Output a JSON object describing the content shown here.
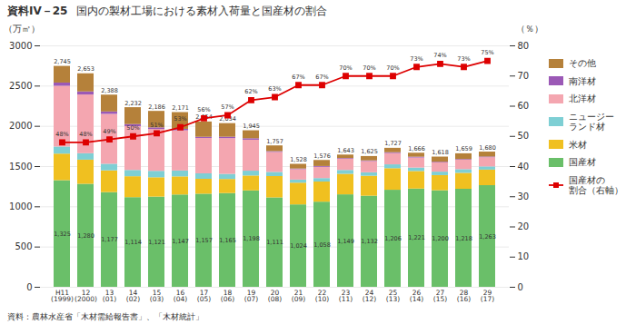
{
  "chart_data": {
    "type": "bar",
    "stacked": true,
    "title": "国内の製材工場における素材入荷量と国産材の割合",
    "annotations": [
      "資料IV－25",
      "資料：農林水産省「木材需給報告書」、「木材統計」"
    ],
    "categories": [
      "H11\n(1999)",
      "12\n(2000)",
      "13\n(01)",
      "14\n(02)",
      "15\n(03)",
      "16\n(04)",
      "17\n(05)",
      "18\n(06)",
      "19\n(07)",
      "20\n(08)",
      "21\n(09)",
      "22\n(10)",
      "23\n(11)",
      "24\n(12)",
      "25\n(13)",
      "26\n(14)",
      "27\n(15)",
      "28\n(16)",
      "29\n(17)"
    ],
    "series": [
      {
        "name": "国産材",
        "color": "#6abf69",
        "values": [
          1325,
          1280,
          1177,
          1114,
          1121,
          1147,
          1157,
          1165,
          1198,
          1111,
          1024,
          1058,
          1149,
          1132,
          1206,
          1221,
          1200,
          1218,
          1263
        ],
        "data_labels": true,
        "value_labels": [
          "1,325",
          "1,280",
          "1,177",
          "1,114",
          "1,121",
          "1,147",
          "1,157",
          "1,165",
          "1,198",
          "1,111",
          "1,024",
          "1,058",
          "1,149",
          "1,132",
          "1,206",
          "1,221",
          "1,200",
          "1,218",
          "1,263"
        ]
      },
      {
        "name": "米材",
        "color": "#f0c020",
        "values": [
          330,
          300,
          270,
          260,
          240,
          225,
          185,
          175,
          185,
          265,
          270,
          250,
          255,
          248,
          268,
          218,
          188,
          198,
          193
        ]
      },
      {
        "name": "ニュージー\nランド材",
        "color": "#7ecfd4",
        "values": [
          88,
          80,
          82,
          78,
          80,
          73,
          68,
          63,
          60,
          52,
          38,
          43,
          48,
          43,
          48,
          43,
          43,
          46,
          40
        ]
      },
      {
        "name": "北洋材",
        "color": "#f4a6b0",
        "values": [
          755,
          730,
          620,
          545,
          520,
          500,
          440,
          445,
          385,
          248,
          130,
          140,
          140,
          140,
          140,
          125,
          115,
          118,
          115
        ]
      },
      {
        "name": "南洋材",
        "color": "#9b59b6",
        "values": [
          40,
          38,
          30,
          25,
          20,
          18,
          14,
          17,
          18,
          10,
          8,
          10,
          8,
          8,
          10,
          10,
          8,
          8,
          8
        ]
      },
      {
        "name": "その他",
        "color": "#b5813a",
        "values": [
          207,
          225,
          209,
          210,
          205,
          208,
          190,
          169,
          99,
          71,
          58,
          75,
          43,
          54,
          55,
          49,
          64,
          71,
          61
        ]
      },
      {
        "name": "国産材の\n割合（右軸）",
        "type": "line",
        "axis": "y2",
        "color": "#dd0000",
        "marker": "square",
        "values": [
          48,
          48,
          49,
          50,
          51,
          53,
          56,
          57,
          62,
          63,
          67,
          67,
          70,
          70,
          70,
          73,
          74,
          73,
          75
        ],
        "data_labels": true,
        "value_labels": [
          "48%",
          "48%",
          "49%",
          "50%",
          "51%",
          "53%",
          "56%",
          "57%",
          "62%",
          "63%",
          "67%",
          "67%",
          "70%",
          "70%",
          "70%",
          "73%",
          "74%",
          "73%",
          "75%"
        ]
      }
    ],
    "totals": [
      2745,
      2653,
      2388,
      2232,
      2186,
      2171,
      2054,
      2034,
      1945,
      1757,
      1528,
      1576,
      1643,
      1625,
      1727,
      1666,
      1618,
      1659,
      1680
    ],
    "total_labels": [
      "2,745",
      "2,653",
      "2,388",
      "2,232",
      "2,186",
      "2,171",
      "2,054",
      "2,034",
      "1,945",
      "1,757",
      "1,528",
      "1,576",
      "1,643",
      "1,625",
      "1,727",
      "1,666",
      "1,618",
      "1,659",
      "1,680"
    ],
    "ylabel": "（万㎥）",
    "y2label": "（％）",
    "ylim": [
      0,
      3000
    ],
    "yticks": [
      0,
      500,
      1000,
      1500,
      2000,
      2500,
      3000
    ],
    "y2lim": [
      0,
      80
    ],
    "y2ticks": [
      0,
      10,
      20,
      30,
      40,
      50,
      60,
      70,
      80
    ],
    "grid": true,
    "legend": "right"
  }
}
